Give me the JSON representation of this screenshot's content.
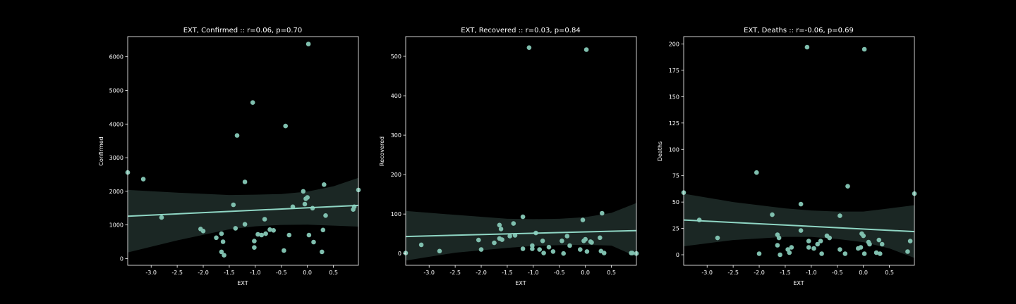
{
  "figure": {
    "background": "#000000",
    "axes_color": "#ffffff",
    "point_color": "#7fbfae",
    "line_color": "#8fd6c4",
    "band_color": "#1b2724"
  },
  "chart_data": [
    {
      "type": "scatter",
      "title": "EXT, Confirmed :: r=0.06, p=0.70",
      "xlabel": "EXT",
      "ylabel": "Confirmed",
      "xlim": [
        -3.45,
        0.98
      ],
      "ylim": [
        -200,
        6600
      ],
      "xticks": [
        -3.0,
        -2.5,
        -2.0,
        -1.5,
        -1.0,
        -0.5,
        0.0,
        0.5
      ],
      "xtick_labels": [
        "-3.0",
        "-2.5",
        "-2.0",
        "-1.5",
        "-1.0",
        "-0.5",
        "0.0",
        "0.5"
      ],
      "yticks": [
        0,
        1000,
        2000,
        3000,
        4000,
        5000,
        6000
      ],
      "ytick_labels": [
        "0",
        "1000",
        "2000",
        "3000",
        "4000",
        "5000",
        "6000"
      ],
      "grid": false,
      "points": [
        {
          "x": -3.45,
          "y": 2560
        },
        {
          "x": -3.15,
          "y": 2360
        },
        {
          "x": -2.8,
          "y": 1220
        },
        {
          "x": -2.05,
          "y": 880
        },
        {
          "x": -2.0,
          "y": 820
        },
        {
          "x": -1.75,
          "y": 620
        },
        {
          "x": -1.65,
          "y": 740
        },
        {
          "x": -1.65,
          "y": 200
        },
        {
          "x": -1.62,
          "y": 500
        },
        {
          "x": -1.6,
          "y": 100
        },
        {
          "x": -1.42,
          "y": 1600
        },
        {
          "x": -1.38,
          "y": 900
        },
        {
          "x": -1.35,
          "y": 3660
        },
        {
          "x": -1.2,
          "y": 2280
        },
        {
          "x": -1.2,
          "y": 1020
        },
        {
          "x": -1.05,
          "y": 4640
        },
        {
          "x": -1.02,
          "y": 520
        },
        {
          "x": -1.02,
          "y": 330
        },
        {
          "x": -0.95,
          "y": 720
        },
        {
          "x": -0.88,
          "y": 700
        },
        {
          "x": -0.82,
          "y": 1170
        },
        {
          "x": -0.8,
          "y": 740
        },
        {
          "x": -0.72,
          "y": 860
        },
        {
          "x": -0.65,
          "y": 840
        },
        {
          "x": -0.45,
          "y": 240
        },
        {
          "x": -0.42,
          "y": 3940
        },
        {
          "x": -0.35,
          "y": 700
        },
        {
          "x": -0.28,
          "y": 1540
        },
        {
          "x": -0.08,
          "y": 2000
        },
        {
          "x": -0.05,
          "y": 1620
        },
        {
          "x": -0.03,
          "y": 1780
        },
        {
          "x": 0.0,
          "y": 1820
        },
        {
          "x": 0.02,
          "y": 6380
        },
        {
          "x": 0.03,
          "y": 700
        },
        {
          "x": 0.1,
          "y": 1500
        },
        {
          "x": 0.12,
          "y": 490
        },
        {
          "x": 0.28,
          "y": 200
        },
        {
          "x": 0.3,
          "y": 850
        },
        {
          "x": 0.32,
          "y": 2200
        },
        {
          "x": 0.35,
          "y": 1280
        },
        {
          "x": 0.88,
          "y": 1460
        },
        {
          "x": 0.9,
          "y": 1540
        },
        {
          "x": 0.98,
          "y": 2040
        }
      ],
      "regression": {
        "x": [
          -3.45,
          0.98
        ],
        "y": [
          1260,
          1580
        ]
      },
      "ci_band": {
        "x": [
          -3.45,
          -2.5,
          -1.5,
          -1.0,
          -0.5,
          0.0,
          0.5,
          0.98
        ],
        "upper": [
          2040,
          1960,
          1890,
          1900,
          1920,
          1990,
          2150,
          2400
        ],
        "lower": [
          180,
          540,
          870,
          960,
          1000,
          1010,
          980,
          950
        ]
      }
    },
    {
      "type": "scatter",
      "title": "EXT, Recovered :: r=0.03, p=0.84",
      "xlabel": "EXT",
      "ylabel": "Recovered",
      "xlim": [
        -3.45,
        0.98
      ],
      "ylim": [
        -30,
        550
      ],
      "xticks": [
        -3.0,
        -2.5,
        -2.0,
        -1.5,
        -1.0,
        -0.5,
        0.0,
        0.5
      ],
      "xtick_labels": [
        "-3.0",
        "-2.5",
        "-2.0",
        "-1.5",
        "-1.0",
        "-0.5",
        "0.0",
        "0.5"
      ],
      "yticks": [
        0,
        100,
        200,
        300,
        400,
        500
      ],
      "ytick_labels": [
        "0",
        "100",
        "200",
        "300",
        "400",
        "500"
      ],
      "grid": false,
      "points": [
        {
          "x": -3.45,
          "y": 1
        },
        {
          "x": -3.15,
          "y": 22
        },
        {
          "x": -2.8,
          "y": 6
        },
        {
          "x": -2.05,
          "y": 34
        },
        {
          "x": -2.0,
          "y": 10
        },
        {
          "x": -1.75,
          "y": 27
        },
        {
          "x": -1.65,
          "y": 72
        },
        {
          "x": -1.62,
          "y": 62
        },
        {
          "x": -1.65,
          "y": 38
        },
        {
          "x": -1.6,
          "y": 35
        },
        {
          "x": -1.45,
          "y": 44
        },
        {
          "x": -1.38,
          "y": 76
        },
        {
          "x": -1.35,
          "y": 46
        },
        {
          "x": -1.2,
          "y": 93
        },
        {
          "x": -1.2,
          "y": 12
        },
        {
          "x": -1.08,
          "y": 522
        },
        {
          "x": -1.02,
          "y": 20
        },
        {
          "x": -1.02,
          "y": 12
        },
        {
          "x": -0.95,
          "y": 52
        },
        {
          "x": -0.88,
          "y": 10
        },
        {
          "x": -0.82,
          "y": 32
        },
        {
          "x": -0.8,
          "y": 1
        },
        {
          "x": -0.7,
          "y": 16
        },
        {
          "x": -0.62,
          "y": 5
        },
        {
          "x": -0.45,
          "y": 32
        },
        {
          "x": -0.42,
          "y": 0
        },
        {
          "x": -0.35,
          "y": 44
        },
        {
          "x": -0.3,
          "y": 20
        },
        {
          "x": -0.1,
          "y": 10
        },
        {
          "x": -0.05,
          "y": 85
        },
        {
          "x": -0.03,
          "y": 32
        },
        {
          "x": 0.0,
          "y": 36
        },
        {
          "x": 0.02,
          "y": 517
        },
        {
          "x": 0.03,
          "y": 5
        },
        {
          "x": 0.1,
          "y": 30
        },
        {
          "x": 0.12,
          "y": 28
        },
        {
          "x": 0.28,
          "y": 40
        },
        {
          "x": 0.3,
          "y": 6
        },
        {
          "x": 0.32,
          "y": 102
        },
        {
          "x": 0.36,
          "y": 1
        },
        {
          "x": 0.88,
          "y": 1
        },
        {
          "x": 0.9,
          "y": 1
        },
        {
          "x": 0.98,
          "y": 0
        }
      ],
      "regression": {
        "x": [
          -3.45,
          0.98
        ],
        "y": [
          43,
          58
        ]
      },
      "ci_band": {
        "x": [
          -3.45,
          -2.5,
          -1.5,
          -1.0,
          -0.5,
          0.0,
          0.5,
          0.98
        ],
        "upper": [
          108,
          98,
          88,
          87,
          88,
          92,
          103,
          128
        ],
        "lower": [
          -18,
          2,
          14,
          19,
          21,
          22,
          20,
          -8
        ]
      }
    },
    {
      "type": "scatter",
      "title": "EXT, Deaths :: r=-0.06, p=0.69",
      "xlabel": "EXT",
      "ylabel": "Deaths",
      "xlim": [
        -3.45,
        0.98
      ],
      "ylim": [
        -10,
        207
      ],
      "xticks": [
        -3.0,
        -2.5,
        -2.0,
        -1.5,
        -1.0,
        -0.5,
        0.0,
        0.5
      ],
      "xtick_labels": [
        "-3.0",
        "-2.5",
        "-2.0",
        "-1.5",
        "-1.0",
        "-0.5",
        "0.0",
        "0.5"
      ],
      "yticks": [
        0,
        25,
        50,
        75,
        100,
        125,
        150,
        175,
        200
      ],
      "ytick_labels": [
        "0",
        "25",
        "50",
        "75",
        "100",
        "125",
        "150",
        "175",
        "200"
      ],
      "grid": false,
      "points": [
        {
          "x": -3.45,
          "y": 59
        },
        {
          "x": -3.15,
          "y": 33
        },
        {
          "x": -2.8,
          "y": 16
        },
        {
          "x": -2.05,
          "y": 78
        },
        {
          "x": -2.0,
          "y": 1
        },
        {
          "x": -1.75,
          "y": 38
        },
        {
          "x": -1.65,
          "y": 19
        },
        {
          "x": -1.62,
          "y": 16
        },
        {
          "x": -1.65,
          "y": 9
        },
        {
          "x": -1.6,
          "y": 0
        },
        {
          "x": -1.45,
          "y": 5
        },
        {
          "x": -1.42,
          "y": 2
        },
        {
          "x": -1.38,
          "y": 7
        },
        {
          "x": -1.2,
          "y": 48
        },
        {
          "x": -1.2,
          "y": 23
        },
        {
          "x": -1.08,
          "y": 197
        },
        {
          "x": -1.05,
          "y": 13
        },
        {
          "x": -1.05,
          "y": 7
        },
        {
          "x": -0.95,
          "y": 6
        },
        {
          "x": -0.88,
          "y": 10
        },
        {
          "x": -0.82,
          "y": 13
        },
        {
          "x": -0.8,
          "y": 1
        },
        {
          "x": -0.7,
          "y": 18
        },
        {
          "x": -0.65,
          "y": 16
        },
        {
          "x": -0.45,
          "y": 5
        },
        {
          "x": -0.45,
          "y": 37
        },
        {
          "x": -0.35,
          "y": 1
        },
        {
          "x": -0.3,
          "y": 65
        },
        {
          "x": -0.1,
          "y": 6
        },
        {
          "x": -0.05,
          "y": 7
        },
        {
          "x": -0.03,
          "y": 20
        },
        {
          "x": 0.0,
          "y": 18
        },
        {
          "x": 0.02,
          "y": 195
        },
        {
          "x": 0.02,
          "y": 1
        },
        {
          "x": 0.1,
          "y": 12
        },
        {
          "x": 0.12,
          "y": 10
        },
        {
          "x": 0.25,
          "y": 2
        },
        {
          "x": 0.3,
          "y": 14
        },
        {
          "x": 0.32,
          "y": 1
        },
        {
          "x": 0.36,
          "y": 10
        },
        {
          "x": 0.85,
          "y": 3
        },
        {
          "x": 0.9,
          "y": 13
        },
        {
          "x": 0.98,
          "y": 58
        }
      ],
      "regression": {
        "x": [
          -3.45,
          0.98
        ],
        "y": [
          33,
          22
        ]
      },
      "ci_band": {
        "x": [
          -3.45,
          -2.5,
          -1.5,
          -1.0,
          -0.5,
          0.0,
          0.5,
          0.98
        ],
        "upper": [
          58,
          50,
          44,
          42,
          41,
          41,
          44,
          47
        ],
        "lower": [
          8,
          14,
          17,
          17,
          15,
          12,
          6,
          -3
        ]
      }
    }
  ]
}
